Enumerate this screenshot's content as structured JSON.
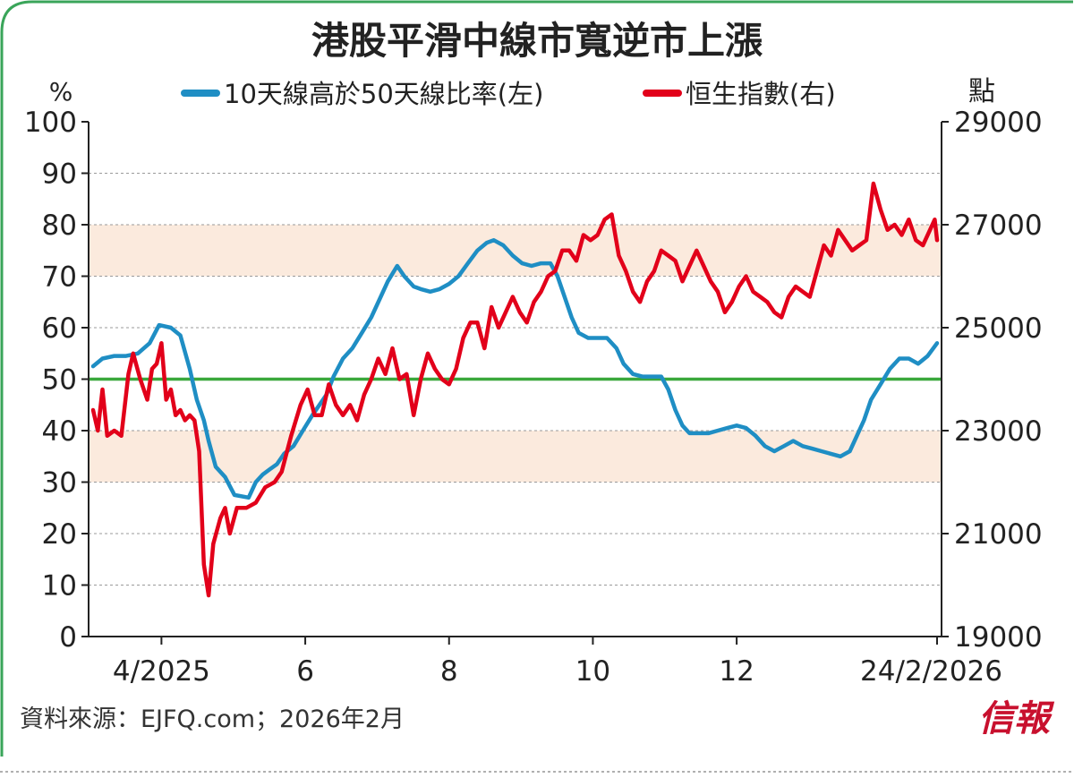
{
  "title": "港股平滑中線市寬逆市上漲",
  "source": "資料來源：EJFQ.com；2026年2月",
  "logo_text": "信報",
  "colors": {
    "frame": "#3aa55a",
    "blue": "#1f8ec4",
    "red": "#e2001a",
    "green_line": "#3aa83c",
    "band": "#fbeadd",
    "grid": "#9a9a9a",
    "axis": "#222222"
  },
  "chart_data": {
    "type": "line",
    "left_axis": {
      "unit_label": "%",
      "range": [
        0,
        100
      ],
      "ticks": [
        "0",
        "10",
        "20",
        "30",
        "40",
        "50",
        "60",
        "70",
        "80",
        "90",
        "100"
      ]
    },
    "right_axis": {
      "unit_label": "點",
      "range": [
        19000,
        29000
      ],
      "ticks": [
        "19000",
        "21000",
        "23000",
        "25000",
        "27000",
        "29000"
      ]
    },
    "x_axis": {
      "range": [
        "2025-03-03",
        "2026-02-24"
      ],
      "tick_labels": [
        "4/2025",
        "6",
        "8",
        "10",
        "12",
        "24/2/2026"
      ],
      "tick_dates": [
        "2025-04-01",
        "2025-06-01",
        "2025-08-01",
        "2025-10-01",
        "2025-12-01",
        "2026-02-24"
      ]
    },
    "reference_line": {
      "value": 50
    },
    "bands": [
      [
        30,
        40
      ],
      [
        70,
        80
      ]
    ],
    "grid": true,
    "legend_position": "top",
    "series": [
      {
        "name": "10天線高於50天線比率(左)",
        "axis": "left",
        "color": "#1f8ec4",
        "points": [
          [
            "2025-03-03",
            52.5
          ],
          [
            "2025-03-07",
            54
          ],
          [
            "2025-03-12",
            54.5
          ],
          [
            "2025-03-17",
            54.5
          ],
          [
            "2025-03-22",
            55
          ],
          [
            "2025-03-27",
            57
          ],
          [
            "2025-03-31",
            60.5
          ],
          [
            "2025-04-05",
            60
          ],
          [
            "2025-04-09",
            58.5
          ],
          [
            "2025-04-13",
            52
          ],
          [
            "2025-04-16",
            46
          ],
          [
            "2025-04-19",
            42
          ],
          [
            "2025-04-21",
            38
          ],
          [
            "2025-04-24",
            33
          ],
          [
            "2025-04-28",
            31
          ],
          [
            "2025-05-02",
            27.5
          ],
          [
            "2025-05-08",
            27
          ],
          [
            "2025-05-11",
            30
          ],
          [
            "2025-05-14",
            31.5
          ],
          [
            "2025-05-17",
            32.5
          ],
          [
            "2025-05-20",
            33.5
          ],
          [
            "2025-05-23",
            35.5
          ],
          [
            "2025-05-27",
            37
          ],
          [
            "2025-05-31",
            40
          ],
          [
            "2025-06-04",
            43
          ],
          [
            "2025-06-07",
            45
          ],
          [
            "2025-06-10",
            47
          ],
          [
            "2025-06-13",
            50.5
          ],
          [
            "2025-06-17",
            54
          ],
          [
            "2025-06-21",
            56
          ],
          [
            "2025-06-25",
            59
          ],
          [
            "2025-06-29",
            62
          ],
          [
            "2025-07-03",
            66
          ],
          [
            "2025-07-06",
            69
          ],
          [
            "2025-07-10",
            72
          ],
          [
            "2025-07-13",
            70
          ],
          [
            "2025-07-17",
            68
          ],
          [
            "2025-07-20",
            67.5
          ],
          [
            "2025-07-24",
            67
          ],
          [
            "2025-07-28",
            67.5
          ],
          [
            "2025-08-01",
            68.5
          ],
          [
            "2025-08-05",
            70
          ],
          [
            "2025-08-09",
            72.5
          ],
          [
            "2025-08-13",
            75
          ],
          [
            "2025-08-17",
            76.5
          ],
          [
            "2025-08-20",
            77
          ],
          [
            "2025-08-24",
            76
          ],
          [
            "2025-08-28",
            74
          ],
          [
            "2025-09-01",
            72.5
          ],
          [
            "2025-09-05",
            72
          ],
          [
            "2025-09-09",
            72.5
          ],
          [
            "2025-09-13",
            72.5
          ],
          [
            "2025-09-16",
            70
          ],
          [
            "2025-09-19",
            66
          ],
          [
            "2025-09-22",
            62
          ],
          [
            "2025-09-25",
            59
          ],
          [
            "2025-09-29",
            58
          ],
          [
            "2025-10-03",
            58
          ],
          [
            "2025-10-07",
            58
          ],
          [
            "2025-10-11",
            56
          ],
          [
            "2025-10-14",
            53
          ],
          [
            "2025-10-18",
            51
          ],
          [
            "2025-10-22",
            50.5
          ],
          [
            "2025-10-26",
            50.5
          ],
          [
            "2025-10-30",
            50.5
          ],
          [
            "2025-11-02",
            48
          ],
          [
            "2025-11-05",
            44
          ],
          [
            "2025-11-08",
            41
          ],
          [
            "2025-11-11",
            39.5
          ],
          [
            "2025-11-15",
            39.5
          ],
          [
            "2025-11-19",
            39.5
          ],
          [
            "2025-11-23",
            40
          ],
          [
            "2025-11-27",
            40.5
          ],
          [
            "2025-12-01",
            41
          ],
          [
            "2025-12-05",
            40.5
          ],
          [
            "2025-12-09",
            39
          ],
          [
            "2025-12-13",
            37
          ],
          [
            "2025-12-17",
            36
          ],
          [
            "2025-12-21",
            37
          ],
          [
            "2025-12-25",
            38
          ],
          [
            "2025-12-29",
            37
          ],
          [
            "2026-01-02",
            36.5
          ],
          [
            "2026-01-06",
            36
          ],
          [
            "2026-01-10",
            35.5
          ],
          [
            "2026-01-14",
            35
          ],
          [
            "2026-01-18",
            36
          ],
          [
            "2026-01-21",
            39
          ],
          [
            "2026-01-24",
            42
          ],
          [
            "2026-01-27",
            46
          ],
          [
            "2026-01-31",
            49
          ],
          [
            "2026-02-04",
            52
          ],
          [
            "2026-02-08",
            54
          ],
          [
            "2026-02-12",
            54
          ],
          [
            "2026-02-16",
            53
          ],
          [
            "2026-02-20",
            54.5
          ],
          [
            "2026-02-24",
            57
          ]
        ]
      },
      {
        "name": "恒生指數(右)",
        "axis": "right",
        "color": "#e2001a",
        "points": [
          [
            "2025-03-03",
            23400
          ],
          [
            "2025-03-05",
            23000
          ],
          [
            "2025-03-07",
            23800
          ],
          [
            "2025-03-09",
            22900
          ],
          [
            "2025-03-12",
            23000
          ],
          [
            "2025-03-15",
            22900
          ],
          [
            "2025-03-18",
            24100
          ],
          [
            "2025-03-20",
            24500
          ],
          [
            "2025-03-23",
            24000
          ],
          [
            "2025-03-26",
            23600
          ],
          [
            "2025-03-28",
            24200
          ],
          [
            "2025-03-30",
            24300
          ],
          [
            "2025-04-01",
            24700
          ],
          [
            "2025-04-03",
            23600
          ],
          [
            "2025-04-05",
            23800
          ],
          [
            "2025-04-07",
            23300
          ],
          [
            "2025-04-09",
            23400
          ],
          [
            "2025-04-11",
            23200
          ],
          [
            "2025-04-13",
            23300
          ],
          [
            "2025-04-15",
            23200
          ],
          [
            "2025-04-17",
            22600
          ],
          [
            "2025-04-19",
            20400
          ],
          [
            "2025-04-21",
            19800
          ],
          [
            "2025-04-23",
            20800
          ],
          [
            "2025-04-26",
            21300
          ],
          [
            "2025-04-28",
            21500
          ],
          [
            "2025-04-30",
            21000
          ],
          [
            "2025-05-03",
            21500
          ],
          [
            "2025-05-07",
            21500
          ],
          [
            "2025-05-11",
            21600
          ],
          [
            "2025-05-15",
            21900
          ],
          [
            "2025-05-19",
            22000
          ],
          [
            "2025-05-22",
            22200
          ],
          [
            "2025-05-26",
            22900
          ],
          [
            "2025-05-30",
            23500
          ],
          [
            "2025-06-02",
            23800
          ],
          [
            "2025-06-05",
            23300
          ],
          [
            "2025-06-08",
            23300
          ],
          [
            "2025-06-11",
            23900
          ],
          [
            "2025-06-14",
            23500
          ],
          [
            "2025-06-17",
            23300
          ],
          [
            "2025-06-20",
            23500
          ],
          [
            "2025-06-23",
            23200
          ],
          [
            "2025-06-26",
            23700
          ],
          [
            "2025-06-29",
            24000
          ],
          [
            "2025-07-02",
            24400
          ],
          [
            "2025-07-05",
            24100
          ],
          [
            "2025-07-08",
            24600
          ],
          [
            "2025-07-11",
            24000
          ],
          [
            "2025-07-14",
            24100
          ],
          [
            "2025-07-17",
            23300
          ],
          [
            "2025-07-20",
            24000
          ],
          [
            "2025-07-23",
            24500
          ],
          [
            "2025-07-26",
            24200
          ],
          [
            "2025-07-29",
            24000
          ],
          [
            "2025-08-01",
            23900
          ],
          [
            "2025-08-04",
            24200
          ],
          [
            "2025-08-07",
            24800
          ],
          [
            "2025-08-10",
            25100
          ],
          [
            "2025-08-13",
            25100
          ],
          [
            "2025-08-16",
            24600
          ],
          [
            "2025-08-19",
            25400
          ],
          [
            "2025-08-22",
            25000
          ],
          [
            "2025-08-25",
            25300
          ],
          [
            "2025-08-28",
            25600
          ],
          [
            "2025-08-31",
            25300
          ],
          [
            "2025-09-03",
            25100
          ],
          [
            "2025-09-06",
            25500
          ],
          [
            "2025-09-09",
            25700
          ],
          [
            "2025-09-12",
            26000
          ],
          [
            "2025-09-15",
            26100
          ],
          [
            "2025-09-18",
            26500
          ],
          [
            "2025-09-21",
            26500
          ],
          [
            "2025-09-24",
            26300
          ],
          [
            "2025-09-27",
            26800
          ],
          [
            "2025-09-30",
            26700
          ],
          [
            "2025-10-03",
            26800
          ],
          [
            "2025-10-06",
            27100
          ],
          [
            "2025-10-09",
            27200
          ],
          [
            "2025-10-12",
            26400
          ],
          [
            "2025-10-15",
            26100
          ],
          [
            "2025-10-18",
            25700
          ],
          [
            "2025-10-21",
            25500
          ],
          [
            "2025-10-24",
            25900
          ],
          [
            "2025-10-27",
            26100
          ],
          [
            "2025-10-30",
            26500
          ],
          [
            "2025-11-02",
            26400
          ],
          [
            "2025-11-05",
            26300
          ],
          [
            "2025-11-08",
            25900
          ],
          [
            "2025-11-11",
            26200
          ],
          [
            "2025-11-14",
            26500
          ],
          [
            "2025-11-17",
            26200
          ],
          [
            "2025-11-20",
            25900
          ],
          [
            "2025-11-23",
            25700
          ],
          [
            "2025-11-26",
            25300
          ],
          [
            "2025-11-29",
            25500
          ],
          [
            "2025-12-02",
            25800
          ],
          [
            "2025-12-05",
            26000
          ],
          [
            "2025-12-08",
            25700
          ],
          [
            "2025-12-11",
            25600
          ],
          [
            "2025-12-14",
            25500
          ],
          [
            "2025-12-17",
            25300
          ],
          [
            "2025-12-20",
            25200
          ],
          [
            "2025-12-23",
            25600
          ],
          [
            "2025-12-26",
            25800
          ],
          [
            "2025-12-29",
            25700
          ],
          [
            "2026-01-01",
            25600
          ],
          [
            "2026-01-04",
            26100
          ],
          [
            "2026-01-07",
            26600
          ],
          [
            "2026-01-10",
            26400
          ],
          [
            "2026-01-13",
            26900
          ],
          [
            "2026-01-16",
            26700
          ],
          [
            "2026-01-19",
            26500
          ],
          [
            "2026-01-22",
            26600
          ],
          [
            "2026-01-25",
            26700
          ],
          [
            "2026-01-28",
            27800
          ],
          [
            "2026-01-31",
            27300
          ],
          [
            "2026-02-03",
            26900
          ],
          [
            "2026-02-06",
            27000
          ],
          [
            "2026-02-09",
            26800
          ],
          [
            "2026-02-12",
            27100
          ],
          [
            "2026-02-15",
            26700
          ],
          [
            "2026-02-18",
            26600
          ],
          [
            "2026-02-21",
            26900
          ],
          [
            "2026-02-23",
            27100
          ],
          [
            "2026-02-24",
            26700
          ]
        ]
      }
    ]
  }
}
